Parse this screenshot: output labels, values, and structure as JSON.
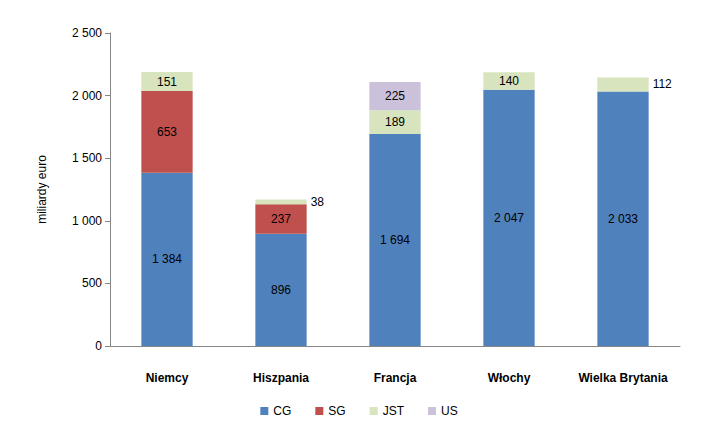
{
  "chart_data": {
    "type": "bar",
    "stacked": true,
    "data_labels": true,
    "grid": false,
    "legend": "bottom",
    "y_label": "miliardy euro",
    "categories": [
      "Niemcy",
      "Hiszpania",
      "Francja",
      "Włochy",
      "Wielka Brytania"
    ],
    "ylim": [
      0,
      2500
    ],
    "yticks": [
      0,
      500,
      {
        "value": 1000,
        "label": "1 000"
      },
      {
        "value": 1500,
        "label": "1 500"
      },
      {
        "value": 2000,
        "label": "2 000"
      },
      {
        "value": 2500,
        "label": "2 500"
      }
    ],
    "series": [
      {
        "name": "CG",
        "color": "#4f81bd",
        "values": [
          1384,
          896,
          1694,
          2047,
          2033
        ],
        "value_labels": [
          "1 384",
          "896",
          "1 694",
          "2 047",
          "2 033"
        ]
      },
      {
        "name": "SG",
        "color": "#c0504d",
        "values": [
          653,
          237,
          null,
          null,
          null
        ]
      },
      {
        "name": "JST",
        "color": "#d7e4bd",
        "values": [
          151,
          38,
          189,
          140,
          112
        ]
      },
      {
        "name": "US",
        "color": "#ccc1da",
        "values": [
          null,
          null,
          225,
          null,
          null
        ]
      }
    ]
  }
}
